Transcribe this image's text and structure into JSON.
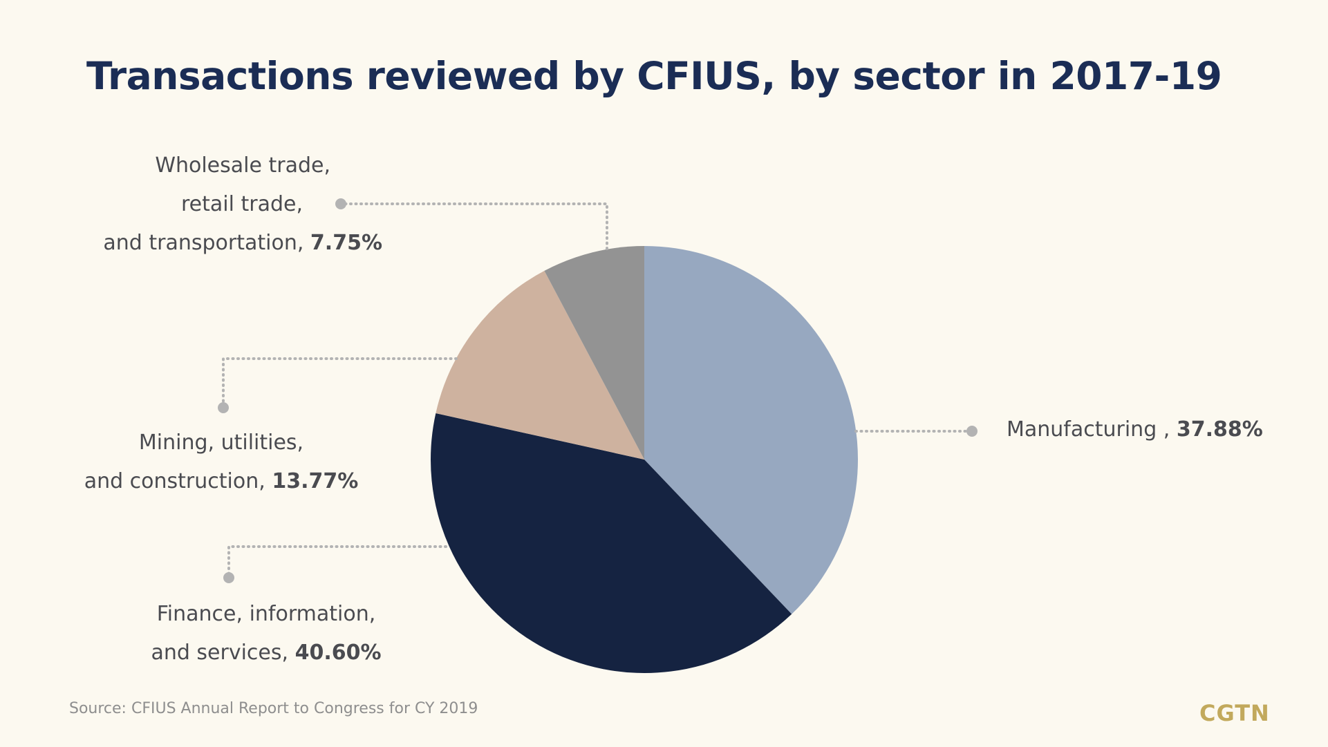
{
  "title": "Transactions reviewed by CFIUS, by sector in 2017-19",
  "source": "Source: CFIUS Annual Report to Congress for CY 2019",
  "logo": "CGTN",
  "chart_data": {
    "type": "pie",
    "title": "Transactions reviewed by CFIUS, by sector in 2017-19",
    "slices": [
      {
        "id": "manufacturing",
        "lines": [
          "Manufacturing ,"
        ],
        "value_label": "37.88%",
        "value": 37.88,
        "color": "#97a8c0"
      },
      {
        "id": "finance",
        "lines": [
          "Finance, information,",
          "and services,"
        ],
        "value_label": "40.60%",
        "value": 40.6,
        "color": "#152341"
      },
      {
        "id": "mining",
        "lines": [
          "Mining, utilities,",
          "and construction,"
        ],
        "value_label": "13.77%",
        "value": 13.77,
        "color": "#ceb29f"
      },
      {
        "id": "wholesale",
        "lines": [
          "Wholesale trade,",
          "retail trade,",
          "and transportation,"
        ],
        "value_label": "7.75%",
        "value": 7.75,
        "color": "#939393"
      }
    ],
    "leader_color": "#b3b3b3"
  }
}
